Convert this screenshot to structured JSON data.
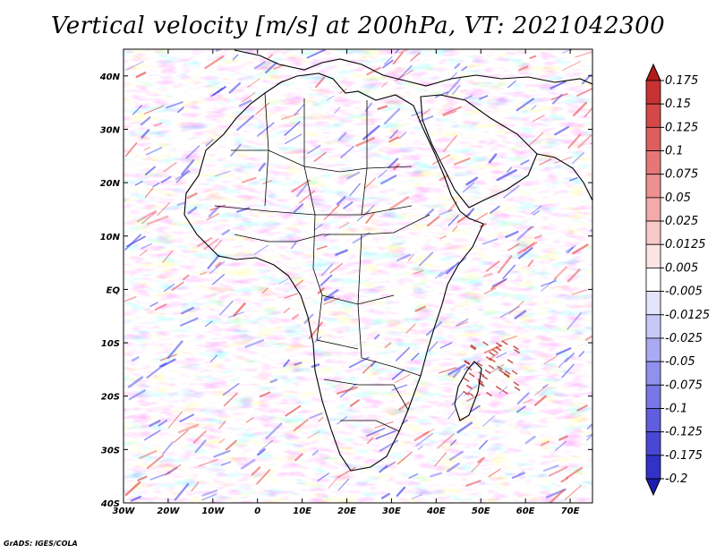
{
  "title": "Vertical velocity [m/s] at 200hPa, VT: 2021042300",
  "credit": "GrADS: IGES/COLA",
  "map": {
    "lon_labels": [
      "30W",
      "20W",
      "10W",
      "0",
      "10E",
      "20E",
      "30E",
      "40E",
      "50E",
      "60E",
      "70E"
    ],
    "lat_labels": [
      "40N",
      "30N",
      "20N",
      "10N",
      "EQ",
      "10S",
      "20S",
      "30S",
      "40S"
    ],
    "lon_range": [
      -30,
      75
    ],
    "lat_range": [
      -40,
      45
    ]
  },
  "colorbar": {
    "labels": [
      "0.175",
      "0.15",
      "0.125",
      "0.1",
      "0.075",
      "0.05",
      "0.025",
      "0.0125",
      "0.005",
      "-0.005",
      "-0.0125",
      "-0.025",
      "-0.05",
      "-0.075",
      "-0.1",
      "-0.125",
      "-0.175",
      "-0.2"
    ],
    "colors": [
      "#b21c1c",
      "#c83232",
      "#d44848",
      "#de5e5e",
      "#e67777",
      "#ed9090",
      "#f3aaaa",
      "#f8c8c8",
      "#fce4e4",
      "#ffffff",
      "#e4e4fc",
      "#c8c8f8",
      "#aaaaf3",
      "#9090ed",
      "#7777e6",
      "#5e5ede",
      "#4848d4",
      "#3232c8",
      "#1c1cb2"
    ]
  },
  "colors": {
    "positive": "#e24848",
    "negative": "#4848e2",
    "coastline": "#000000"
  }
}
